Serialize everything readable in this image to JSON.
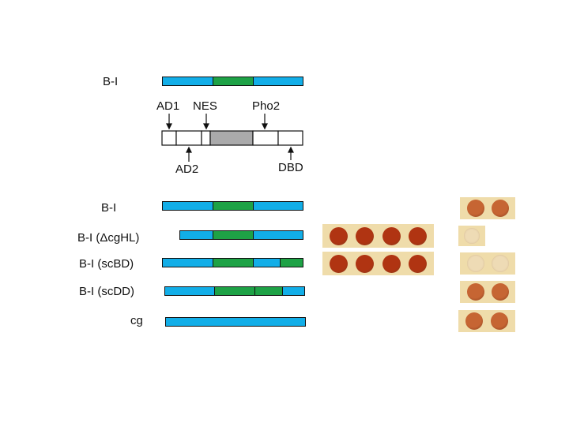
{
  "colors": {
    "blue": "#12aee8",
    "green": "#1ea246",
    "gray": "#aaaaab",
    "white": "#ffffff",
    "plate_bg": "#efdcaa",
    "spot_dark": "#b03412",
    "spot_mid": "#c66533",
    "spot_faint": "#eedbb5"
  },
  "top_construct": {
    "label": "B-I",
    "segments": [
      "blue",
      "green",
      "blue"
    ]
  },
  "domains": {
    "ad1": "AD1",
    "nes": "NES",
    "pho2": "Pho2",
    "ad2": "AD2",
    "dbd": "DBD"
  },
  "constructs": [
    {
      "label": "B-I",
      "segments": [
        "blue",
        "green",
        "blue"
      ],
      "plate_left": null,
      "plate_right": {
        "spots": 2,
        "intensity": "mid"
      }
    },
    {
      "label": "B-I (ΔcgHL)",
      "segments": [
        "blue",
        "green",
        "blue"
      ],
      "plate_left": {
        "spots": 4,
        "intensity": "dark"
      },
      "plate_right": {
        "spots": 1,
        "intensity": "faint"
      }
    },
    {
      "label": "B-I (scBD)",
      "segments": [
        "blue",
        "green",
        "blue",
        "green"
      ],
      "plate_left": {
        "spots": 4,
        "intensity": "dark"
      },
      "plate_right": {
        "spots": 2,
        "intensity": "faint"
      }
    },
    {
      "label": "B-I (scDD)",
      "segments": [
        "blue",
        "green",
        "green",
        "blue"
      ],
      "plate_left": null,
      "plate_right": {
        "spots": 2,
        "intensity": "mid"
      }
    },
    {
      "label": "cg",
      "segments": [
        "blue"
      ],
      "plate_left": null,
      "plate_right": {
        "spots": 2,
        "intensity": "mid"
      }
    }
  ]
}
